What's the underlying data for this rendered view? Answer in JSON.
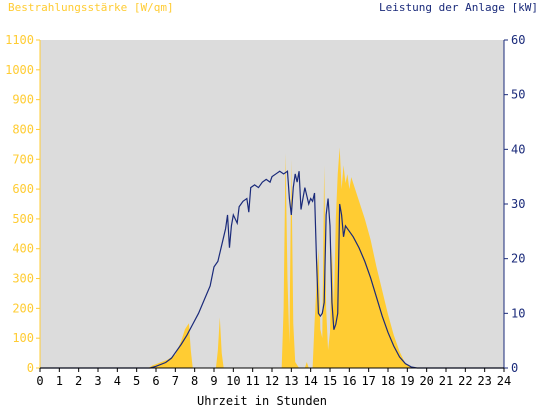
{
  "chart_data": {
    "type": "area",
    "ylabel_left": "Bestrahlungsstärke [W/qm]",
    "ylabel_right": "Leistung der Anlage [kW]",
    "xlabel": "Uhrzeit in Stunden",
    "xlim": [
      0,
      24
    ],
    "ylim_left": [
      0,
      1100
    ],
    "ylim_right": [
      0,
      60
    ],
    "x_ticks": [
      0,
      1,
      2,
      3,
      4,
      5,
      6,
      7,
      8,
      9,
      10,
      11,
      12,
      13,
      14,
      15,
      16,
      17,
      18,
      19,
      20,
      21,
      22,
      23,
      24
    ],
    "y_ticks_left": [
      0,
      100,
      200,
      300,
      400,
      500,
      600,
      700,
      800,
      900,
      1000,
      1100
    ],
    "y_ticks_right": [
      0,
      10,
      20,
      30,
      40,
      50,
      60
    ],
    "grid": false,
    "colors": {
      "background_plot": "#dcdcdc",
      "irradiance_fill": "#ffcc33",
      "power_line": "#1a2a7a",
      "left_axis": "#ffcc33",
      "right_axis": "#1a2a7a",
      "axis_black": "#000000"
    },
    "series": [
      {
        "key": "irradiance",
        "axis": "left",
        "style": "area",
        "points": [
          [
            0,
            0
          ],
          [
            5.6,
            0
          ],
          [
            5.8,
            8
          ],
          [
            6.2,
            18
          ],
          [
            6.6,
            28
          ],
          [
            7.0,
            45
          ],
          [
            7.3,
            90
          ],
          [
            7.5,
            130
          ],
          [
            7.7,
            150
          ],
          [
            7.8,
            60
          ],
          [
            7.9,
            0
          ],
          [
            9.1,
            0
          ],
          [
            9.2,
            60
          ],
          [
            9.3,
            170
          ],
          [
            9.4,
            50
          ],
          [
            9.5,
            0
          ],
          [
            12.5,
            0
          ],
          [
            12.6,
            200
          ],
          [
            12.7,
            720
          ],
          [
            12.8,
            300
          ],
          [
            12.9,
            80
          ],
          [
            13.0,
            700
          ],
          [
            13.1,
            150
          ],
          [
            13.2,
            20
          ],
          [
            13.4,
            0
          ],
          [
            13.7,
            0
          ],
          [
            13.8,
            20
          ],
          [
            13.9,
            0
          ],
          [
            14.1,
            0
          ],
          [
            14.2,
            150
          ],
          [
            14.4,
            400
          ],
          [
            14.5,
            130
          ],
          [
            14.6,
            100
          ],
          [
            14.7,
            680
          ],
          [
            14.8,
            200
          ],
          [
            14.9,
            60
          ],
          [
            15.0,
            120
          ],
          [
            15.1,
            400
          ],
          [
            15.2,
            200
          ],
          [
            15.3,
            500
          ],
          [
            15.4,
            650
          ],
          [
            15.5,
            740
          ],
          [
            15.6,
            600
          ],
          [
            15.7,
            680
          ],
          [
            15.8,
            620
          ],
          [
            15.9,
            650
          ],
          [
            16.0,
            600
          ],
          [
            16.1,
            640
          ],
          [
            16.3,
            600
          ],
          [
            16.5,
            560
          ],
          [
            16.8,
            500
          ],
          [
            17.1,
            430
          ],
          [
            17.4,
            340
          ],
          [
            17.7,
            260
          ],
          [
            18.0,
            180
          ],
          [
            18.3,
            110
          ],
          [
            18.6,
            55
          ],
          [
            18.9,
            15
          ],
          [
            19.2,
            2
          ],
          [
            19.4,
            0
          ],
          [
            24,
            0
          ]
        ]
      },
      {
        "key": "power",
        "axis": "right",
        "style": "line",
        "points": [
          [
            0,
            0
          ],
          [
            5.7,
            0
          ],
          [
            6.0,
            0.3
          ],
          [
            6.5,
            1.0
          ],
          [
            6.8,
            1.8
          ],
          [
            7.0,
            2.8
          ],
          [
            7.3,
            4.3
          ],
          [
            7.6,
            6.0
          ],
          [
            7.9,
            8.0
          ],
          [
            8.2,
            10.0
          ],
          [
            8.5,
            12.5
          ],
          [
            8.8,
            15.0
          ],
          [
            9.0,
            18.5
          ],
          [
            9.2,
            19.5
          ],
          [
            9.3,
            21.0
          ],
          [
            9.5,
            24.0
          ],
          [
            9.6,
            25.5
          ],
          [
            9.7,
            28.0
          ],
          [
            9.8,
            22.0
          ],
          [
            9.9,
            26.0
          ],
          [
            10.0,
            28.0
          ],
          [
            10.2,
            26.5
          ],
          [
            10.3,
            29.5
          ],
          [
            10.5,
            30.5
          ],
          [
            10.7,
            31.0
          ],
          [
            10.8,
            28.5
          ],
          [
            10.9,
            33.0
          ],
          [
            11.1,
            33.5
          ],
          [
            11.3,
            33.0
          ],
          [
            11.5,
            34.0
          ],
          [
            11.7,
            34.5
          ],
          [
            11.9,
            34.0
          ],
          [
            12.0,
            35.0
          ],
          [
            12.2,
            35.5
          ],
          [
            12.4,
            36.0
          ],
          [
            12.6,
            35.5
          ],
          [
            12.8,
            36.0
          ],
          [
            12.9,
            31.0
          ],
          [
            13.0,
            28.0
          ],
          [
            13.1,
            33.0
          ],
          [
            13.2,
            35.5
          ],
          [
            13.3,
            34.0
          ],
          [
            13.4,
            36.0
          ],
          [
            13.5,
            29.0
          ],
          [
            13.6,
            31.0
          ],
          [
            13.7,
            33.0
          ],
          [
            13.8,
            31.5
          ],
          [
            13.9,
            30.0
          ],
          [
            14.0,
            31.0
          ],
          [
            14.1,
            30.5
          ],
          [
            14.2,
            32.0
          ],
          [
            14.3,
            20.0
          ],
          [
            14.4,
            10.0
          ],
          [
            14.5,
            9.5
          ],
          [
            14.6,
            10.0
          ],
          [
            14.7,
            12.0
          ],
          [
            14.8,
            28.0
          ],
          [
            14.9,
            31.0
          ],
          [
            15.0,
            26.0
          ],
          [
            15.1,
            12.0
          ],
          [
            15.2,
            7.0
          ],
          [
            15.3,
            8.0
          ],
          [
            15.4,
            10.0
          ],
          [
            15.5,
            30.0
          ],
          [
            15.6,
            28.0
          ],
          [
            15.7,
            24.0
          ],
          [
            15.8,
            26.0
          ],
          [
            16.0,
            25.0
          ],
          [
            16.2,
            24.0
          ],
          [
            16.5,
            22.0
          ],
          [
            16.8,
            19.5
          ],
          [
            17.1,
            16.5
          ],
          [
            17.4,
            13.0
          ],
          [
            17.7,
            9.5
          ],
          [
            18.0,
            6.5
          ],
          [
            18.3,
            4.0
          ],
          [
            18.6,
            2.0
          ],
          [
            18.9,
            0.8
          ],
          [
            19.2,
            0.2
          ],
          [
            19.5,
            0
          ],
          [
            24,
            0
          ]
        ]
      }
    ]
  }
}
